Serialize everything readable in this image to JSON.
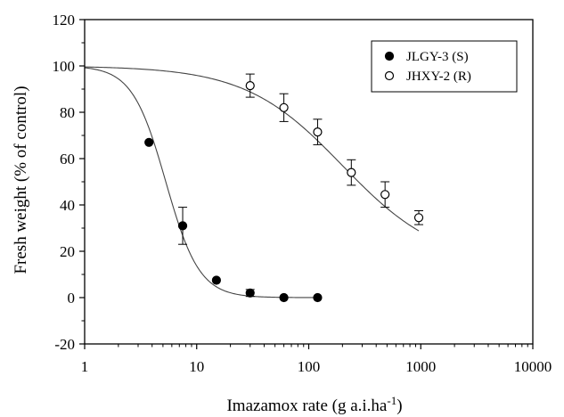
{
  "chart_data": {
    "type": "scatter",
    "title": "",
    "xlabel": "Imazamox rate (g a.i.ha",
    "xlabel_sup": "-1",
    "xlabel_tail": ")",
    "ylabel": "Fresh weight (% of control)",
    "x_scale": "log",
    "xlim": [
      1,
      10000
    ],
    "ylim": [
      -20,
      120
    ],
    "x_ticks": [
      1,
      10,
      100,
      1000,
      10000
    ],
    "x_tick_labels": [
      "1",
      "10",
      "100",
      "1000",
      "10000"
    ],
    "y_ticks": [
      -20,
      0,
      20,
      40,
      60,
      80,
      100,
      120
    ],
    "y_tick_labels": [
      "-20",
      "0",
      "20",
      "40",
      "60",
      "80",
      "100",
      "120"
    ],
    "grid": false,
    "legend_position": "top-right",
    "series": [
      {
        "name": "JLGY-3 (S)",
        "marker": "filled-circle",
        "color": "#000000",
        "x": [
          3.75,
          7.5,
          15,
          30,
          60,
          120
        ],
        "y": [
          67,
          31,
          7.5,
          2,
          0,
          0
        ],
        "err": [
          0,
          8,
          0,
          1.5,
          0,
          0
        ],
        "fit": {
          "model": "log-logistic",
          "top": 100,
          "bottom": 0,
          "ed50": 5.3,
          "slope": 2.9
        }
      },
      {
        "name": "JHXY-2 (R)",
        "marker": "open-circle",
        "color": "#000000",
        "x": [
          30,
          60,
          120,
          240,
          480,
          960
        ],
        "y": [
          91.5,
          82,
          71.5,
          54,
          44.5,
          34.5
        ],
        "err": [
          5,
          6,
          5.5,
          5.5,
          5.5,
          3
        ],
        "fit": {
          "model": "log-logistic",
          "top": 100,
          "bottom": 14,
          "ed50": 200,
          "slope": 1.0
        }
      }
    ]
  }
}
